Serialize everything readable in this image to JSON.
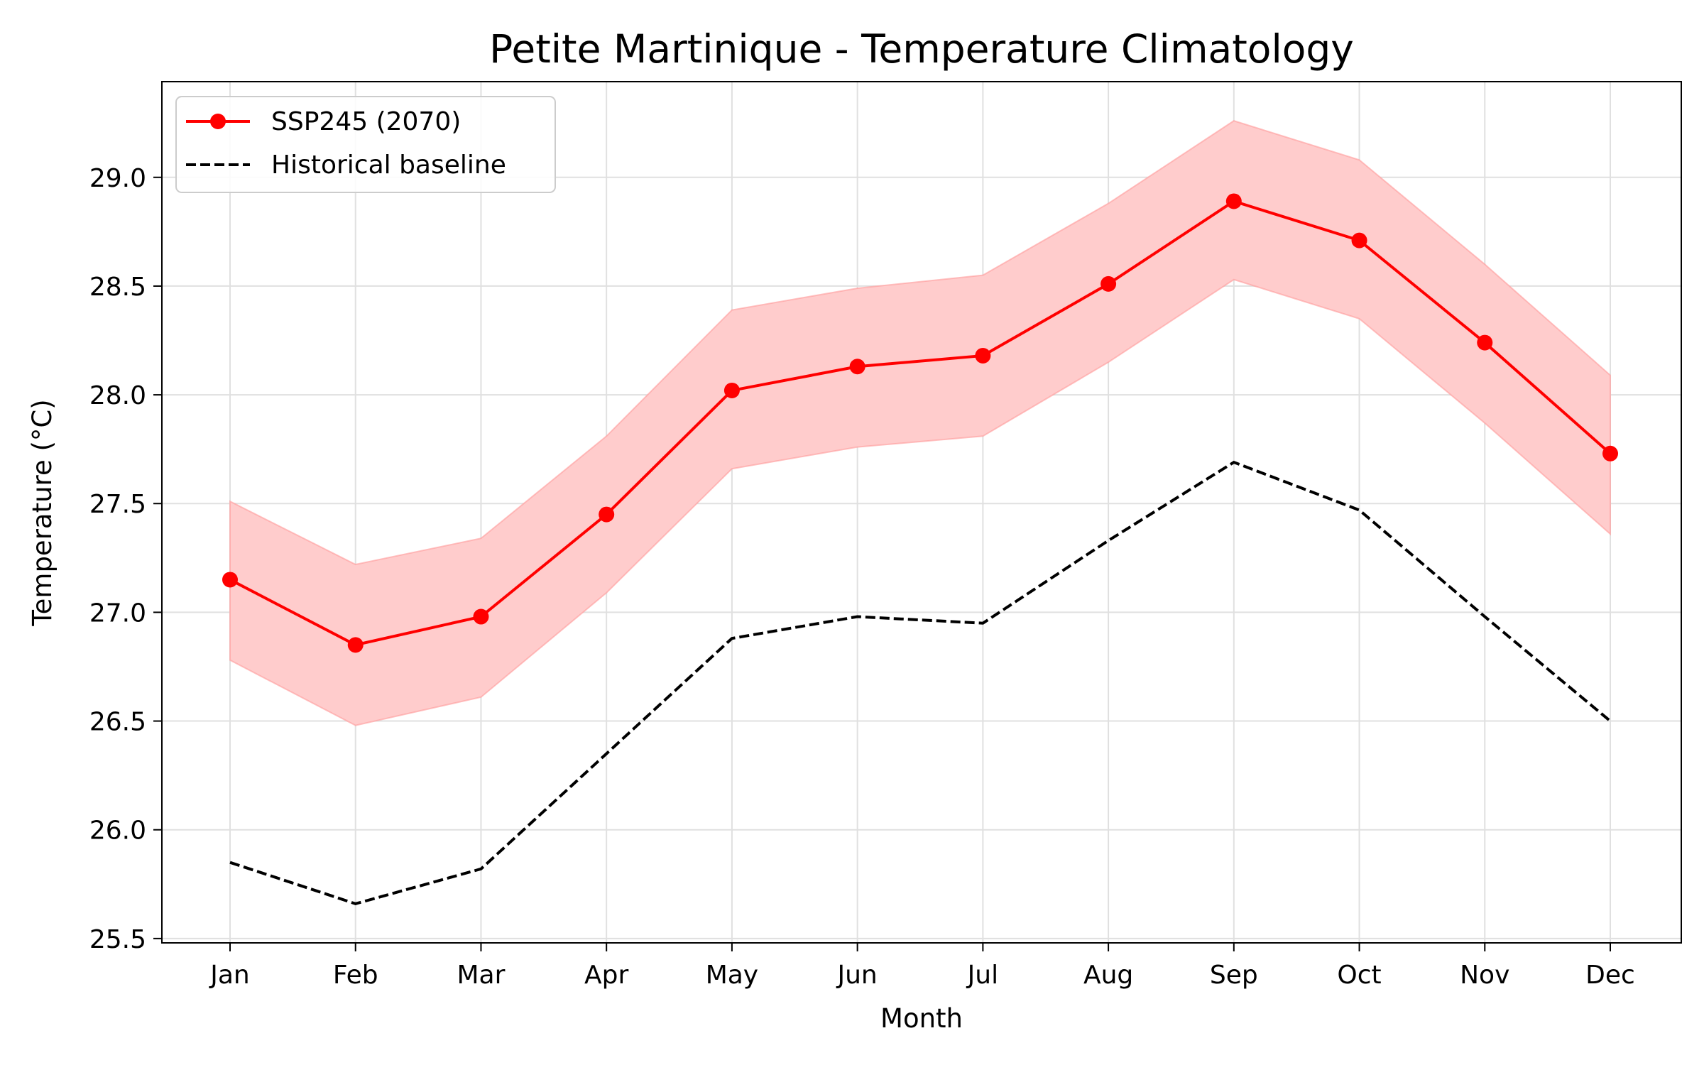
{
  "chart_data": {
    "type": "line",
    "title": "Petite Martinique - Temperature Climatology",
    "xlabel": "Month",
    "ylabel": "Temperature (°C)",
    "categories": [
      "Jan",
      "Feb",
      "Mar",
      "Apr",
      "May",
      "Jun",
      "Jul",
      "Aug",
      "Sep",
      "Oct",
      "Nov",
      "Dec"
    ],
    "ylim": [
      25.48,
      29.44
    ],
    "yticks": [
      25.5,
      26.0,
      26.5,
      27.0,
      27.5,
      28.0,
      28.5,
      29.0
    ],
    "ytick_labels": [
      "25.5",
      "26.0",
      "26.5",
      "27.0",
      "27.5",
      "28.0",
      "28.5",
      "29.0"
    ],
    "grid": true,
    "legend_position": "top-left",
    "series": [
      {
        "name": "SSP245 (2070)",
        "style": "solid-with-markers",
        "color": "#ff0000",
        "values": [
          27.15,
          26.85,
          26.98,
          27.45,
          28.02,
          28.13,
          28.18,
          28.51,
          28.89,
          28.71,
          28.24,
          27.73
        ],
        "band_lower": [
          26.78,
          26.48,
          26.61,
          27.09,
          27.66,
          27.76,
          27.81,
          28.15,
          28.53,
          28.35,
          27.87,
          27.36
        ],
        "band_upper": [
          27.51,
          27.22,
          27.34,
          27.81,
          28.39,
          28.49,
          28.55,
          28.88,
          29.26,
          29.08,
          28.6,
          28.09
        ],
        "band_color": "#ffcccc"
      },
      {
        "name": "Historical baseline",
        "style": "dashed",
        "color": "#000000",
        "values": [
          25.85,
          25.66,
          25.82,
          26.35,
          26.88,
          26.98,
          26.95,
          27.33,
          27.69,
          27.47,
          26.98,
          26.5
        ]
      }
    ]
  }
}
